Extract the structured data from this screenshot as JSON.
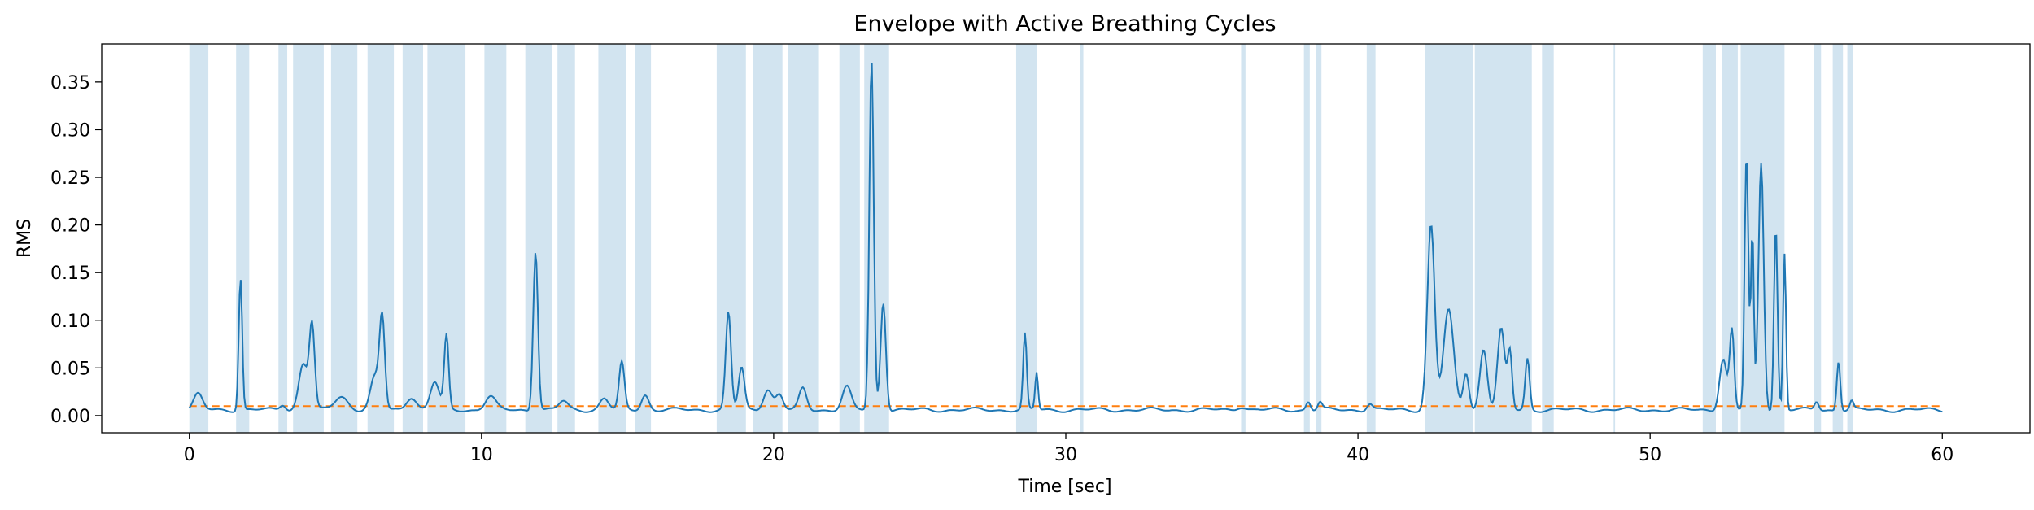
{
  "chart_data": {
    "type": "line",
    "title": "Envelope with Active Breathing Cycles",
    "xlabel": "Time [sec]",
    "ylabel": "RMS",
    "xlim": [
      -3,
      63
    ],
    "ylim": [
      -0.018,
      0.39
    ],
    "x_ticks": [
      0,
      10,
      20,
      30,
      40,
      50,
      60
    ],
    "x_tick_labels": [
      "0",
      "10",
      "20",
      "30",
      "40",
      "50",
      "60"
    ],
    "y_ticks": [
      0.0,
      0.05,
      0.1,
      0.15,
      0.2,
      0.25,
      0.3,
      0.35
    ],
    "y_tick_labels": [
      "0.00",
      "0.05",
      "0.10",
      "0.15",
      "0.20",
      "0.25",
      "0.30",
      "0.35"
    ],
    "grid": false,
    "line_color": "#1f77b4",
    "threshold_color": "#ff7f0e",
    "span_color": "#1f77b4",
    "span_opacity": 0.2,
    "threshold": 0.01,
    "baseline": 0.006,
    "series": [
      {
        "peaks": [
          [
            0.3,
            0.022,
            0.3
          ],
          [
            1.75,
            0.145,
            0.12
          ],
          [
            3.2,
            0.012,
            0.2
          ],
          [
            3.9,
            0.055,
            0.3
          ],
          [
            4.2,
            0.093,
            0.18
          ],
          [
            5.2,
            0.02,
            0.45
          ],
          [
            6.6,
            0.1,
            0.18
          ],
          [
            6.35,
            0.04,
            0.3
          ],
          [
            7.6,
            0.02,
            0.35
          ],
          [
            8.4,
            0.035,
            0.3
          ],
          [
            8.8,
            0.083,
            0.15
          ],
          [
            10.3,
            0.02,
            0.35
          ],
          [
            11.85,
            0.174,
            0.16
          ],
          [
            12.8,
            0.015,
            0.3
          ],
          [
            14.2,
            0.018,
            0.3
          ],
          [
            14.8,
            0.055,
            0.18
          ],
          [
            15.6,
            0.022,
            0.25
          ],
          [
            18.45,
            0.108,
            0.18
          ],
          [
            18.9,
            0.05,
            0.2
          ],
          [
            19.8,
            0.028,
            0.3
          ],
          [
            20.2,
            0.022,
            0.25
          ],
          [
            21.0,
            0.028,
            0.25
          ],
          [
            22.5,
            0.03,
            0.3
          ],
          [
            23.35,
            0.373,
            0.15
          ],
          [
            23.75,
            0.12,
            0.18
          ],
          [
            28.6,
            0.085,
            0.12
          ],
          [
            29.0,
            0.045,
            0.1
          ],
          [
            36.0,
            0.01,
            0.3
          ],
          [
            38.3,
            0.015,
            0.15
          ],
          [
            38.7,
            0.014,
            0.15
          ],
          [
            40.4,
            0.013,
            0.2
          ],
          [
            42.5,
            0.2,
            0.25
          ],
          [
            43.1,
            0.11,
            0.35
          ],
          [
            43.7,
            0.045,
            0.2
          ],
          [
            44.3,
            0.07,
            0.25
          ],
          [
            44.9,
            0.09,
            0.25
          ],
          [
            45.2,
            0.065,
            0.15
          ],
          [
            45.8,
            0.06,
            0.15
          ],
          [
            52.5,
            0.06,
            0.25
          ],
          [
            52.8,
            0.088,
            0.15
          ],
          [
            53.3,
            0.275,
            0.13
          ],
          [
            53.5,
            0.19,
            0.1
          ],
          [
            53.8,
            0.265,
            0.18
          ],
          [
            54.3,
            0.2,
            0.12
          ],
          [
            54.6,
            0.17,
            0.1
          ],
          [
            55.7,
            0.015,
            0.15
          ],
          [
            56.45,
            0.058,
            0.12
          ],
          [
            56.9,
            0.015,
            0.12
          ]
        ]
      }
    ],
    "active_spans": [
      [
        0.0,
        0.65
      ],
      [
        1.6,
        2.05
      ],
      [
        3.05,
        3.35
      ],
      [
        3.55,
        4.6
      ],
      [
        4.85,
        5.75
      ],
      [
        6.1,
        7.0
      ],
      [
        7.3,
        8.0
      ],
      [
        8.15,
        9.45
      ],
      [
        10.1,
        10.85
      ],
      [
        11.5,
        12.4
      ],
      [
        12.6,
        13.2
      ],
      [
        14.0,
        14.95
      ],
      [
        15.25,
        15.8
      ],
      [
        18.05,
        19.05
      ],
      [
        19.3,
        20.3
      ],
      [
        20.5,
        21.55
      ],
      [
        22.25,
        22.95
      ],
      [
        23.1,
        23.95
      ],
      [
        28.3,
        29.0
      ],
      [
        30.5,
        30.6
      ],
      [
        36.0,
        36.15
      ],
      [
        38.15,
        38.35
      ],
      [
        38.55,
        38.75
      ],
      [
        40.3,
        40.6
      ],
      [
        42.3,
        43.95
      ],
      [
        44.0,
        45.95
      ],
      [
        46.3,
        46.7
      ],
      [
        48.75,
        48.8
      ],
      [
        51.8,
        52.25
      ],
      [
        52.45,
        53.0
      ],
      [
        53.1,
        54.6
      ],
      [
        55.6,
        55.85
      ],
      [
        56.25,
        56.6
      ],
      [
        56.75,
        56.95
      ]
    ]
  }
}
